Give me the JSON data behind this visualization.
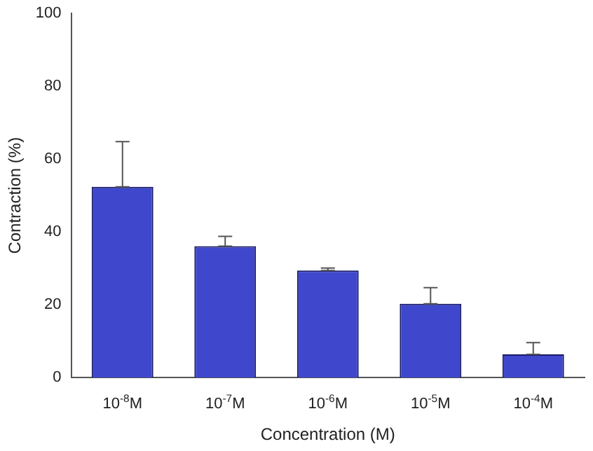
{
  "chart_data": {
    "type": "bar",
    "xlabel": "Concentration (M)",
    "ylabel": "Contraction (%)",
    "categories": [
      "10$^{-8}$M",
      "10$^{-7}$M",
      "10$^{-6}$M",
      "10$^{-5}$M",
      "10$^{-4}$M"
    ],
    "series": [
      {
        "color": "#3f48cc",
        "values": [
          52.4,
          36.1,
          29.4,
          20.3,
          6.4
        ],
        "errors": [
          [
            52.4,
            64.8
          ],
          [
            36.1,
            38.8
          ],
          [
            29.4,
            30.1
          ],
          [
            20.3,
            24.7
          ],
          [
            6.4,
            9.6
          ]
        ]
      }
    ],
    "ylim": [
      0,
      100
    ],
    "yticks": [
      0,
      20,
      40,
      60,
      80,
      100
    ],
    "grid": false,
    "legend": false
  }
}
